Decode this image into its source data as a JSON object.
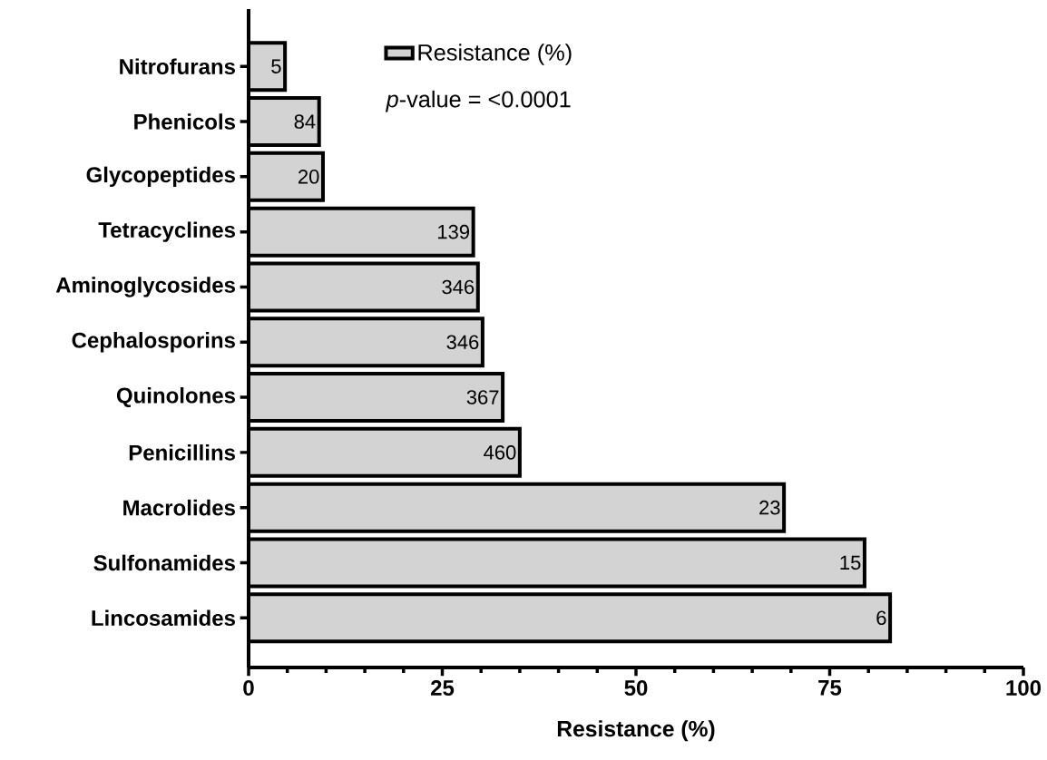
{
  "chart_data": {
    "type": "bar",
    "orientation": "horizontal",
    "xlabel": "Resistance (%)",
    "categories": [
      "Nitrofurans",
      "Phenicols",
      "Glycopeptides",
      "Tetracyclines",
      "Aminoglycosides",
      "Cephalosporins",
      "Quinolones",
      "Penicillins",
      "Macrolides",
      "Sulfonamides",
      "Lincosamides"
    ],
    "series": [
      {
        "name": "Resistance (%)",
        "color": "#d3d3d3",
        "values": [
          4.7,
          9.1,
          9.6,
          29.0,
          29.6,
          30.2,
          32.8,
          35.0,
          69.1,
          79.5,
          82.8
        ]
      }
    ],
    "xlim": [
      0,
      100
    ],
    "xticks": [
      0,
      {
        "value": 5,
        "label": null
      },
      {
        "value": 10,
        "label": null
      },
      {
        "value": 15,
        "label": null
      },
      {
        "value": 20,
        "label": null
      },
      25,
      {
        "value": 30,
        "label": null
      },
      {
        "value": 35,
        "label": null
      },
      {
        "value": 40,
        "label": null
      },
      {
        "value": 45,
        "label": null
      },
      50,
      {
        "value": 55,
        "label": null
      },
      {
        "value": 60,
        "label": null
      },
      {
        "value": 65,
        "label": null
      },
      {
        "value": 70,
        "label": null
      },
      75,
      {
        "value": 80,
        "label": null
      },
      {
        "value": 85,
        "label": null
      },
      {
        "value": 90,
        "label": null
      },
      {
        "value": 95,
        "label": null
      },
      100
    ],
    "legend": "top",
    "annotations": [
      "*p*-value = <0.0001",
      {
        "text": "5",
        "x": 4.7,
        "y": "Nitrofurans"
      },
      {
        "text": "84",
        "x": 9.1,
        "y": "Phenicols"
      },
      {
        "text": "20",
        "x": 9.6,
        "y": "Glycopeptides"
      },
      {
        "text": "139",
        "x": 29.0,
        "y": "Tetracyclines"
      },
      {
        "text": "346",
        "x": 29.6,
        "y": "Aminoglycosides"
      },
      {
        "text": "346",
        "x": 30.2,
        "y": "Cephalosporins"
      },
      {
        "text": "367",
        "x": 32.8,
        "y": "Quinolones"
      },
      {
        "text": "460",
        "x": 35.0,
        "y": "Penicillins"
      },
      {
        "text": "23",
        "x": 69.1,
        "y": "Macrolides"
      },
      {
        "text": "15",
        "x": 79.5,
        "y": "Sulfonamides"
      },
      {
        "text": "6",
        "x": 82.8,
        "y": "Lincosamides"
      }
    ]
  }
}
